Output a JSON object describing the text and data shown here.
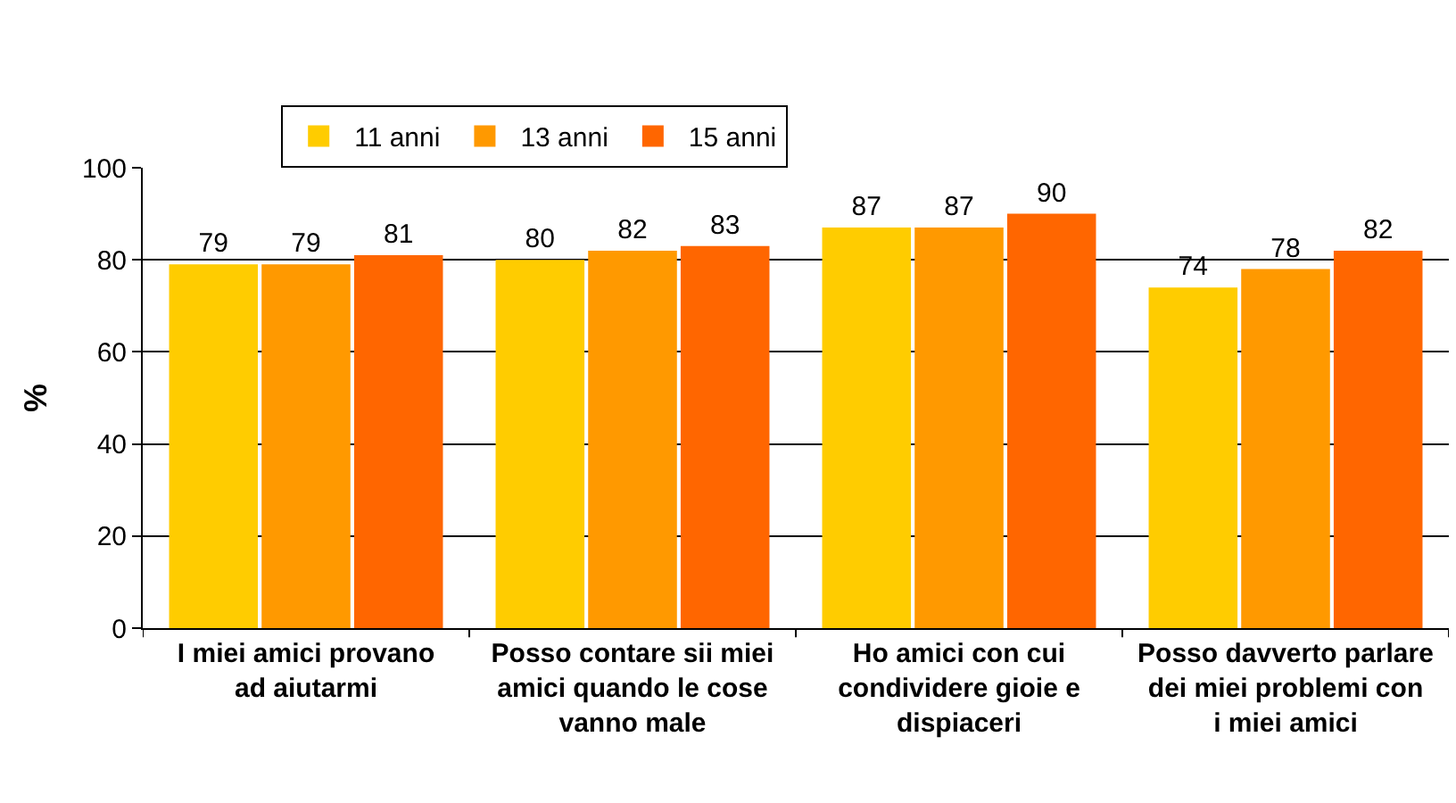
{
  "chart_data": {
    "type": "bar",
    "ylabel": "%",
    "categories": [
      "I miei amici provano ad aiutarmi",
      "Posso contare sii miei amici quando le cose vanno male",
      "Ho amici con cui condividere gioie e dispiaceri",
      "Posso davverto parlare dei miei problemi con i miei amici"
    ],
    "series": [
      {
        "name": "11 anni",
        "color": "#ffcc00",
        "values": [
          79,
          80,
          87,
          74
        ]
      },
      {
        "name": "13 anni",
        "color": "#ff9900",
        "values": [
          79,
          82,
          87,
          78
        ]
      },
      {
        "name": "15 anni",
        "color": "#ff6600",
        "values": [
          81,
          83,
          90,
          82
        ]
      }
    ],
    "ylim": [
      0,
      100
    ],
    "yticks": [
      0,
      20,
      40,
      60,
      80,
      100
    ],
    "grid": "y",
    "legend": "top",
    "data_labels": true
  }
}
